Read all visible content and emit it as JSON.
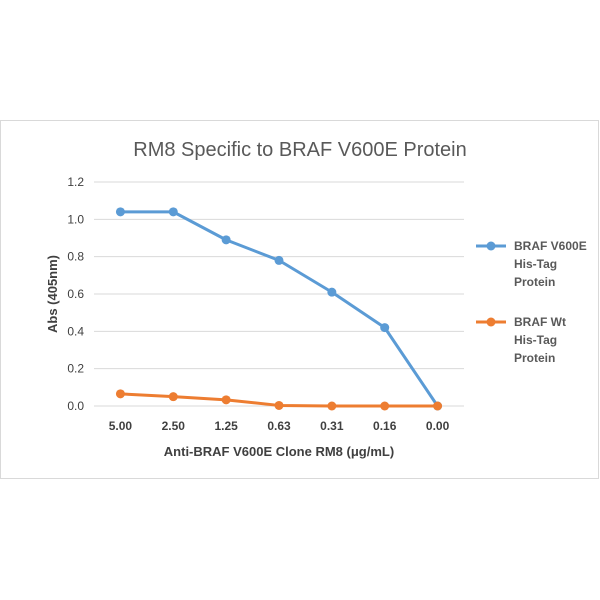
{
  "chart_data": {
    "type": "line",
    "title": "RM8 Specific to BRAF V600E Protein",
    "xlabel": "Anti-BRAF V600E Clone RM8 (μg/mL)",
    "ylabel": "Abs (405nm)",
    "categories": [
      "5.00",
      "2.50",
      "1.25",
      "0.63",
      "0.31",
      "0.16",
      "0.00"
    ],
    "yticks": [
      "0.0",
      "0.2",
      "0.4",
      "0.6",
      "0.8",
      "1.0",
      "1.2"
    ],
    "ylim": [
      0,
      1.2
    ],
    "grid": true,
    "legend_position": "right",
    "series": [
      {
        "name_lines": [
          "BRAF V600E",
          "His-Tag",
          "Protein"
        ],
        "color": "#5b9bd5",
        "values": [
          1.04,
          1.04,
          0.89,
          0.78,
          0.61,
          0.42,
          0.0
        ]
      },
      {
        "name_lines": [
          "BRAF Wt",
          "His-Tag",
          "Protein"
        ],
        "color": "#ed7d31",
        "values": [
          0.065,
          0.05,
          0.033,
          0.003,
          0.0,
          0.0,
          0.0
        ]
      }
    ]
  }
}
